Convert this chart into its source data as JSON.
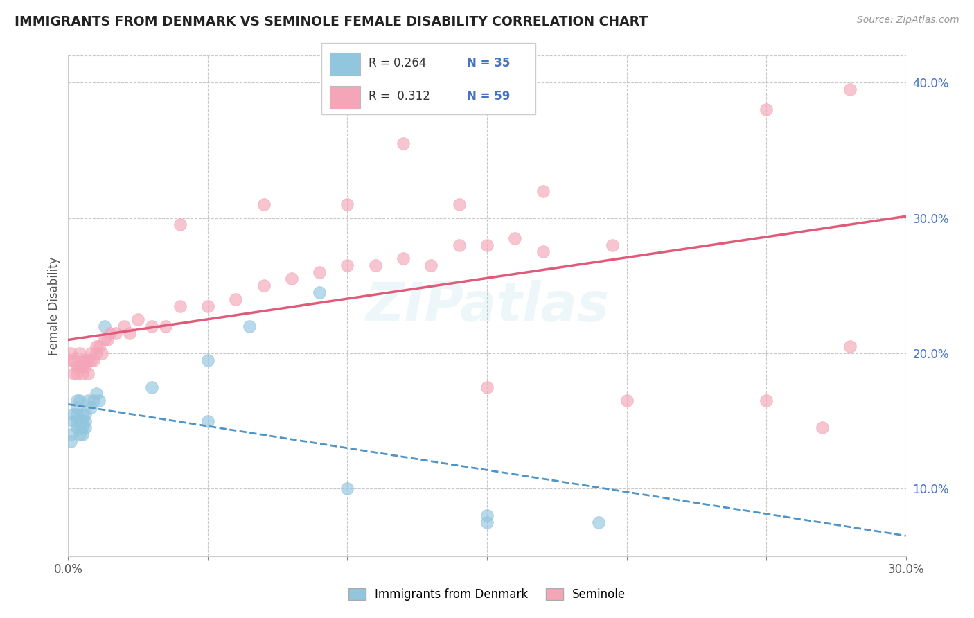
{
  "title": "IMMIGRANTS FROM DENMARK VS SEMINOLE FEMALE DISABILITY CORRELATION CHART",
  "source": "Source: ZipAtlas.com",
  "ylabel": "Female Disability",
  "xlim": [
    0.0,
    0.3
  ],
  "ylim": [
    0.05,
    0.42
  ],
  "xticks": [
    0.0,
    0.05,
    0.1,
    0.15,
    0.2,
    0.25,
    0.3
  ],
  "xtick_labels": [
    "0.0%",
    "",
    "",
    "",
    "",
    "",
    "30.0%"
  ],
  "yticks_right": [
    0.1,
    0.2,
    0.3,
    0.4
  ],
  "ytick_labels_right": [
    "10.0%",
    "20.0%",
    "30.0%",
    "40.0%"
  ],
  "color_blue": "#92c5de",
  "color_pink": "#f4a6b8",
  "line_blue": "#4d94c8",
  "line_pink": "#e05a7a",
  "background_color": "#ffffff",
  "grid_color": "#c8c8c8",
  "denmark_x": [
    0.001,
    0.001,
    0.002,
    0.002,
    0.003,
    0.003,
    0.003,
    0.003,
    0.003,
    0.004,
    0.004,
    0.004,
    0.004,
    0.005,
    0.005,
    0.005,
    0.005,
    0.006,
    0.006,
    0.006,
    0.007,
    0.008,
    0.009,
    0.01,
    0.011,
    0.013,
    0.03,
    0.05,
    0.065,
    0.09,
    0.05,
    0.1,
    0.15,
    0.15,
    0.19
  ],
  "denmark_y": [
    0.14,
    0.135,
    0.15,
    0.155,
    0.145,
    0.15,
    0.155,
    0.16,
    0.165,
    0.14,
    0.145,
    0.15,
    0.165,
    0.14,
    0.145,
    0.15,
    0.155,
    0.145,
    0.15,
    0.155,
    0.165,
    0.16,
    0.165,
    0.17,
    0.165,
    0.22,
    0.175,
    0.195,
    0.22,
    0.245,
    0.15,
    0.1,
    0.08,
    0.075,
    0.075
  ],
  "seminole_x": [
    0.001,
    0.001,
    0.002,
    0.002,
    0.003,
    0.003,
    0.004,
    0.004,
    0.005,
    0.005,
    0.005,
    0.006,
    0.006,
    0.007,
    0.007,
    0.008,
    0.008,
    0.009,
    0.01,
    0.01,
    0.011,
    0.012,
    0.013,
    0.014,
    0.015,
    0.017,
    0.02,
    0.022,
    0.025,
    0.03,
    0.035,
    0.04,
    0.05,
    0.06,
    0.07,
    0.08,
    0.09,
    0.1,
    0.11,
    0.12,
    0.13,
    0.14,
    0.15,
    0.16,
    0.17,
    0.195,
    0.15,
    0.2,
    0.25,
    0.28,
    0.04,
    0.07,
    0.1,
    0.14,
    0.17,
    0.12,
    0.25,
    0.28,
    0.27
  ],
  "seminole_y": [
    0.195,
    0.2,
    0.185,
    0.195,
    0.185,
    0.19,
    0.19,
    0.2,
    0.185,
    0.19,
    0.195,
    0.19,
    0.195,
    0.185,
    0.195,
    0.195,
    0.2,
    0.195,
    0.2,
    0.205,
    0.205,
    0.2,
    0.21,
    0.21,
    0.215,
    0.215,
    0.22,
    0.215,
    0.225,
    0.22,
    0.22,
    0.235,
    0.235,
    0.24,
    0.25,
    0.255,
    0.26,
    0.265,
    0.265,
    0.27,
    0.265,
    0.28,
    0.28,
    0.285,
    0.275,
    0.28,
    0.175,
    0.165,
    0.165,
    0.205,
    0.295,
    0.31,
    0.31,
    0.31,
    0.32,
    0.355,
    0.38,
    0.395,
    0.145
  ],
  "watermark": "ZIPatlas",
  "legend_items": [
    {
      "label": "R = 0.264",
      "n": "N = 35",
      "color": "#92c5de"
    },
    {
      "label": "R =  0.312",
      "n": "N = 59",
      "color": "#f4a6b8"
    }
  ],
  "bottom_legend": [
    "Immigrants from Denmark",
    "Seminole"
  ]
}
